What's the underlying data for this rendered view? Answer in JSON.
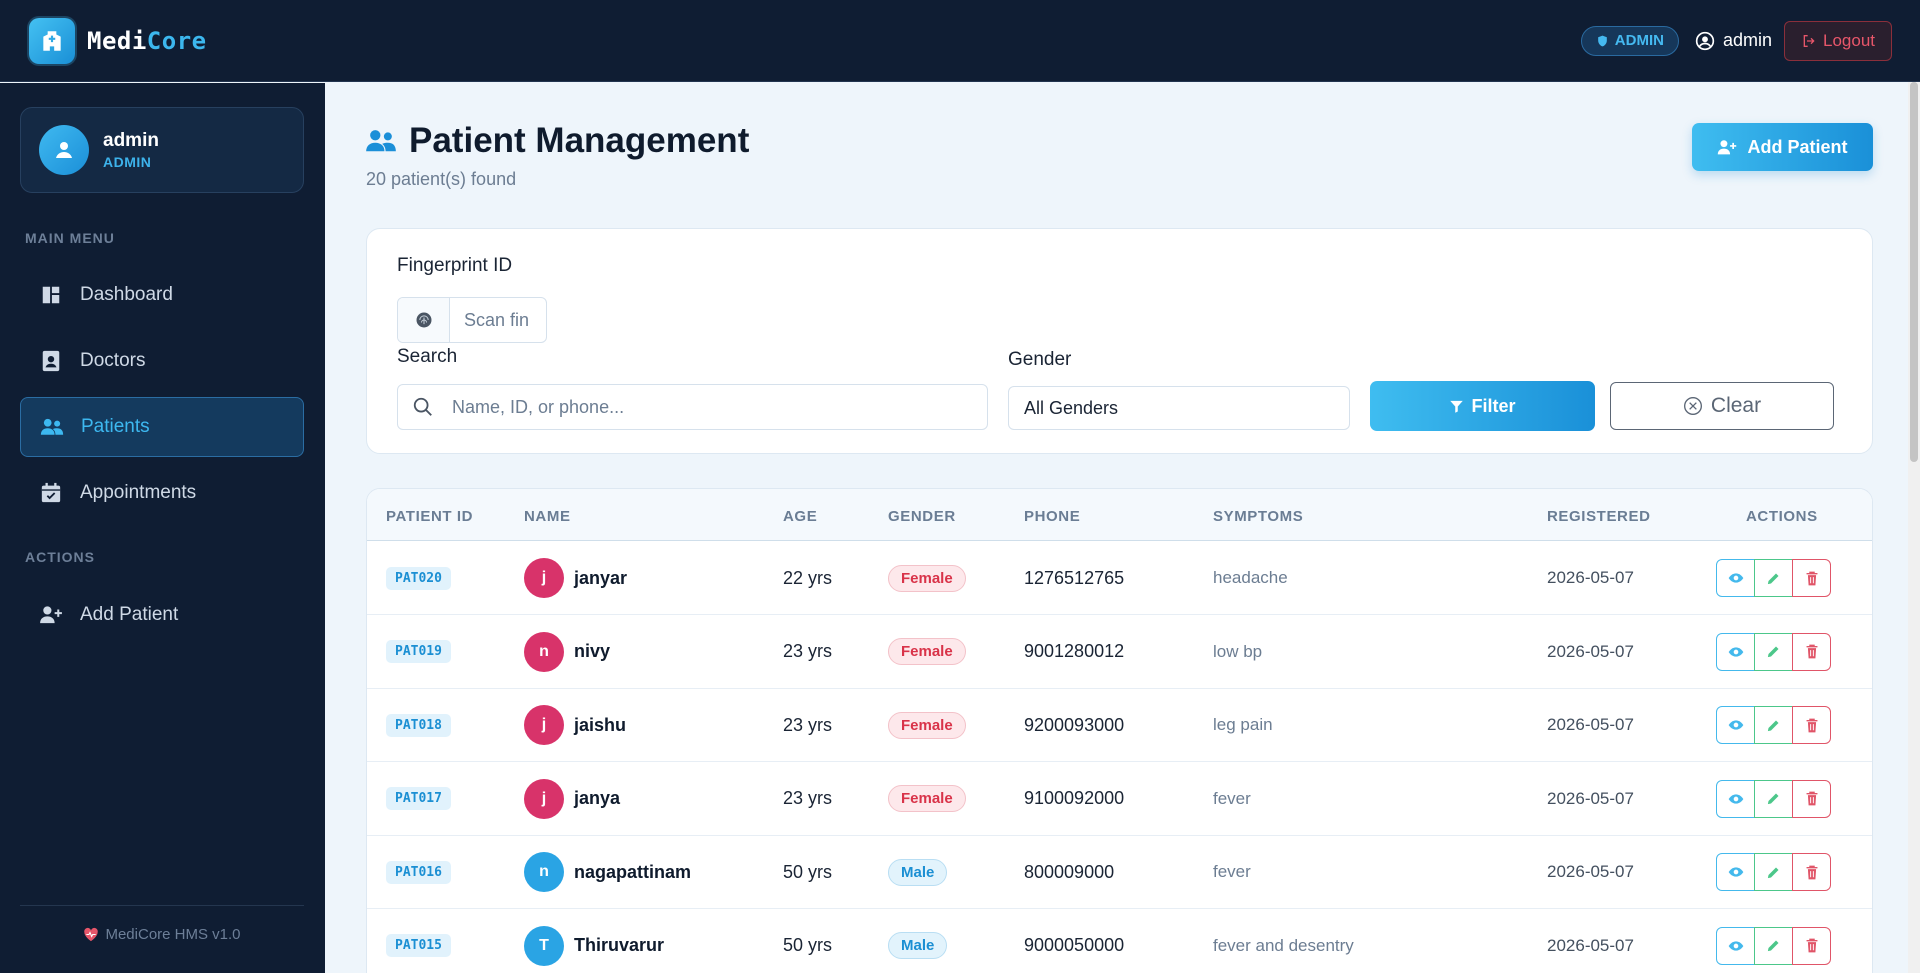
{
  "topbar": {
    "brand_prefix": "Medi",
    "brand_accent": "Core",
    "role_pill": "ADMIN",
    "username": "admin",
    "logout_label": "Logout"
  },
  "sidebar": {
    "profile": {
      "name": "admin",
      "role": "ADMIN"
    },
    "main_menu_label": "MAIN MENU",
    "items": [
      {
        "label": "Dashboard",
        "icon": "dashboard-icon",
        "active": false
      },
      {
        "label": "Doctors",
        "icon": "doctor-id-icon",
        "active": false
      },
      {
        "label": "Patients",
        "icon": "users-icon",
        "active": true
      },
      {
        "label": "Appointments",
        "icon": "calendar-icon",
        "active": false
      }
    ],
    "actions_label": "ACTIONS",
    "action_items": [
      {
        "label": "Add Patient",
        "icon": "user-plus-icon"
      }
    ],
    "footer": "MediCore HMS v1.0"
  },
  "main": {
    "title": "Patient Management",
    "subtitle": "20 patient(s) found",
    "add_button": "Add Patient"
  },
  "filters": {
    "fingerprint_label": "Fingerprint ID",
    "fingerprint_placeholder": "Scan fin",
    "search_label": "Search",
    "search_placeholder": "Name, ID, or phone...",
    "gender_label": "Gender",
    "gender_value": "All Genders",
    "filter_button": "Filter",
    "clear_button": "Clear"
  },
  "table": {
    "headers": [
      "PATIENT ID",
      "NAME",
      "AGE",
      "GENDER",
      "PHONE",
      "SYMPTOMS",
      "REGISTERED",
      "ACTIONS"
    ],
    "rows": [
      {
        "id": "PAT020",
        "initial": "j",
        "name": "janyar",
        "age": "22 yrs",
        "gender": "Female",
        "phone": "1276512765",
        "symptoms": "headache",
        "registered": "2026-05-07"
      },
      {
        "id": "PAT019",
        "initial": "n",
        "name": "nivy",
        "age": "23 yrs",
        "gender": "Female",
        "phone": "9001280012",
        "symptoms": "low bp",
        "registered": "2026-05-07"
      },
      {
        "id": "PAT018",
        "initial": "j",
        "name": "jaishu",
        "age": "23 yrs",
        "gender": "Female",
        "phone": "9200093000",
        "symptoms": "leg pain",
        "registered": "2026-05-07"
      },
      {
        "id": "PAT017",
        "initial": "j",
        "name": "janya",
        "age": "23 yrs",
        "gender": "Female",
        "phone": "9100092000",
        "symptoms": "fever",
        "registered": "2026-05-07"
      },
      {
        "id": "PAT016",
        "initial": "n",
        "name": "nagapattinam",
        "age": "50 yrs",
        "gender": "Male",
        "phone": "800009000",
        "symptoms": "fever",
        "registered": "2026-05-07"
      },
      {
        "id": "PAT015",
        "initial": "T",
        "name": "Thiruvarur",
        "age": "50 yrs",
        "gender": "Male",
        "phone": "9000050000",
        "symptoms": "fever and desentry",
        "registered": "2026-05-07"
      }
    ]
  },
  "colors": {
    "accent": "#3cb7ee",
    "sidebar_bg": "#0f1d33",
    "female_avatar": "#d8336a",
    "male_avatar": "#2aa4e4",
    "danger": "#e05568",
    "success": "#4cc78a"
  }
}
